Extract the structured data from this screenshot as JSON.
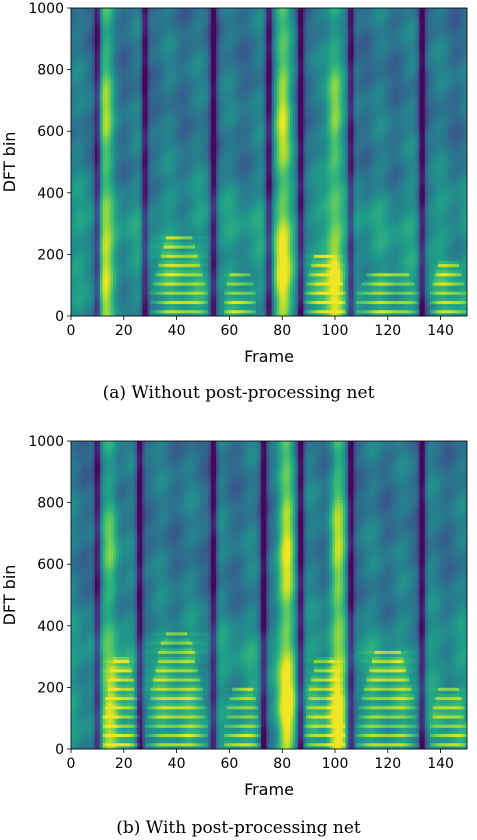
{
  "chart_data": [
    {
      "type": "heatmap",
      "caption": "(a) Without post-processing net",
      "xlabel": "Frame",
      "ylabel": "DFT bin",
      "xlim": [
        0,
        150
      ],
      "ylim": [
        0,
        1000
      ],
      "xticks": [
        "0",
        "20",
        "40",
        "60",
        "80",
        "100",
        "120",
        "140"
      ],
      "yticks": [
        "0",
        "200",
        "400",
        "600",
        "800",
        "1000"
      ],
      "colormap": "viridis",
      "silence_frames": [
        10,
        28,
        54,
        75,
        87,
        106,
        133
      ],
      "bright_columns": [
        {
          "frame": 13,
          "top_bin": 1000,
          "level": 0.78
        },
        {
          "frame": 80,
          "top_bin": 1000,
          "level": 0.92
        },
        {
          "frame": 100,
          "top_bin": 1000,
          "level": 0.85
        }
      ],
      "harmonic_regions": [
        {
          "from": 30,
          "to": 52,
          "max_bin": 260
        },
        {
          "from": 58,
          "to": 70,
          "max_bin": 140
        },
        {
          "from": 88,
          "to": 104,
          "max_bin": 200
        },
        {
          "from": 108,
          "to": 132,
          "max_bin": 140
        },
        {
          "from": 136,
          "to": 150,
          "max_bin": 180
        }
      ]
    },
    {
      "type": "heatmap",
      "caption": "(b) With post-processing net",
      "xlabel": "Frame",
      "ylabel": "DFT bin",
      "xlim": [
        0,
        150
      ],
      "ylim": [
        0,
        1000
      ],
      "xticks": [
        "0",
        "20",
        "40",
        "60",
        "80",
        "100",
        "120",
        "140"
      ],
      "yticks": [
        "0",
        "200",
        "400",
        "600",
        "800",
        "1000"
      ],
      "colormap": "viridis",
      "silence_frames": [
        10,
        26,
        54,
        73,
        87,
        106,
        133
      ],
      "bright_columns": [
        {
          "frame": 15,
          "top_bin": 1000,
          "level": 0.75
        },
        {
          "frame": 82,
          "top_bin": 1000,
          "level": 0.95
        },
        {
          "frame": 101,
          "top_bin": 1000,
          "level": 0.85
        }
      ],
      "harmonic_regions": [
        {
          "from": 12,
          "to": 26,
          "max_bin": 300
        },
        {
          "from": 28,
          "to": 52,
          "max_bin": 380
        },
        {
          "from": 58,
          "to": 72,
          "max_bin": 200
        },
        {
          "from": 88,
          "to": 104,
          "max_bin": 300
        },
        {
          "from": 108,
          "to": 132,
          "max_bin": 320
        },
        {
          "from": 136,
          "to": 150,
          "max_bin": 200
        }
      ]
    }
  ]
}
